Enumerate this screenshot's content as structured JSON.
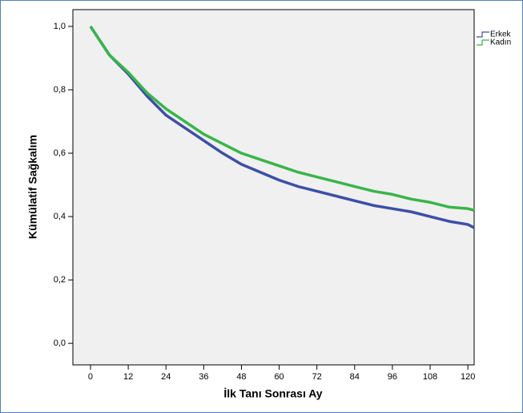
{
  "chart_data": {
    "type": "line",
    "x_label": "İlk Tanı Sonrası Ay",
    "y_label": "Kümülatif Sağkalım",
    "x": [
      0,
      6,
      12,
      18,
      24,
      30,
      36,
      42,
      48,
      54,
      60,
      66,
      72,
      78,
      84,
      90,
      96,
      102,
      108,
      114,
      120,
      122
    ],
    "series": [
      {
        "name": "Erkek",
        "color": "#3d4fa8",
        "values": [
          1.0,
          0.91,
          0.85,
          0.78,
          0.72,
          0.68,
          0.64,
          0.6,
          0.565,
          0.54,
          0.515,
          0.495,
          0.48,
          0.465,
          0.45,
          0.435,
          0.425,
          0.415,
          0.4,
          0.385,
          0.375,
          0.365
        ]
      },
      {
        "name": "Kadın",
        "color": "#39b54a",
        "values": [
          1.0,
          0.91,
          0.855,
          0.79,
          0.74,
          0.7,
          0.66,
          0.63,
          0.6,
          0.58,
          0.56,
          0.54,
          0.525,
          0.51,
          0.495,
          0.48,
          0.47,
          0.455,
          0.445,
          0.43,
          0.425,
          0.42
        ]
      }
    ],
    "xlim": [
      -5.6,
      122
    ],
    "ylim": [
      -0.068,
      1.053
    ],
    "xticks": [
      0,
      12,
      24,
      36,
      48,
      60,
      72,
      84,
      96,
      108,
      120
    ],
    "yticks": [
      {
        "value": 0,
        "label": "0,0"
      },
      {
        "value": 0.2,
        "label": "0,2"
      },
      {
        "value": 0.4,
        "label": "0,4"
      },
      {
        "value": 0.6,
        "label": "0,6"
      },
      {
        "value": 0.8,
        "label": "0,8"
      },
      {
        "value": 1,
        "label": "1,0"
      }
    ],
    "grid": false,
    "legend": "outside-top-right"
  }
}
